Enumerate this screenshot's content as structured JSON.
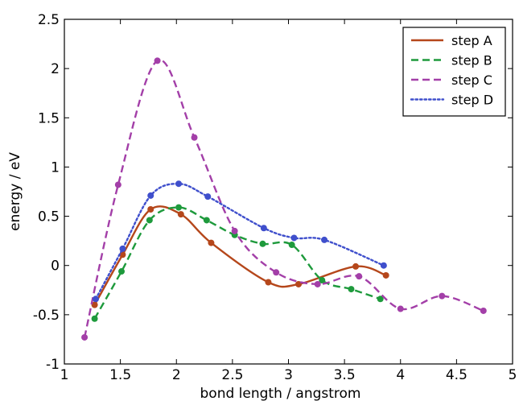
{
  "chart_data": {
    "type": "line",
    "title": "",
    "xlabel": "bond length / angstrom",
    "ylabel": "energy / eV",
    "xlim": [
      1,
      5
    ],
    "ylim": [
      -1,
      2.5
    ],
    "xticks": [
      1,
      1.5,
      2,
      2.5,
      3,
      3.5,
      4,
      4.5,
      5
    ],
    "xtick_labels": [
      "1",
      "1.5",
      "2",
      "2.5",
      "3",
      "3.5",
      "4",
      "4.5",
      "5"
    ],
    "yticks": [
      -1,
      -0.5,
      0,
      0.5,
      1,
      1.5,
      2,
      2.5
    ],
    "ytick_labels": [
      "-1",
      "-0.5",
      "0",
      "0.5",
      "1",
      "1.5",
      "2",
      "2.5"
    ],
    "grid": false,
    "legend_position": "top-right",
    "series": [
      {
        "name": "step A",
        "color": "#b5471b",
        "line_style": "solid",
        "x": [
          1.27,
          1.52,
          1.77,
          2.04,
          2.31,
          2.82,
          3.09,
          3.6,
          3.87
        ],
        "y": [
          -0.4,
          0.11,
          0.57,
          0.52,
          0.23,
          -0.17,
          -0.19,
          -0.01,
          -0.1
        ]
      },
      {
        "name": "step B",
        "color": "#1e9a3c",
        "line_style": "dashed",
        "x": [
          1.27,
          1.51,
          1.76,
          2.02,
          2.27,
          2.52,
          2.77,
          3.03,
          3.3,
          3.56,
          3.82
        ],
        "y": [
          -0.54,
          -0.06,
          0.46,
          0.59,
          0.46,
          0.31,
          0.22,
          0.21,
          -0.15,
          -0.24,
          -0.34
        ]
      },
      {
        "name": "step C",
        "color": "#a33fa8",
        "line_style": "dashed",
        "x": [
          1.18,
          1.48,
          1.83,
          2.16,
          2.52,
          2.89,
          3.26,
          3.63,
          4.0,
          4.37,
          4.74
        ],
        "y": [
          -0.73,
          0.82,
          2.08,
          1.3,
          0.35,
          -0.07,
          -0.19,
          -0.11,
          -0.44,
          -0.31,
          -0.46
        ]
      },
      {
        "name": "step D",
        "color": "#3f4fcc",
        "line_style": "dotted",
        "x": [
          1.28,
          1.52,
          1.77,
          2.02,
          2.28,
          2.78,
          3.05,
          3.32,
          3.85
        ],
        "y": [
          -0.34,
          0.17,
          0.71,
          0.83,
          0.7,
          0.38,
          0.28,
          0.26,
          0.0
        ]
      }
    ]
  }
}
